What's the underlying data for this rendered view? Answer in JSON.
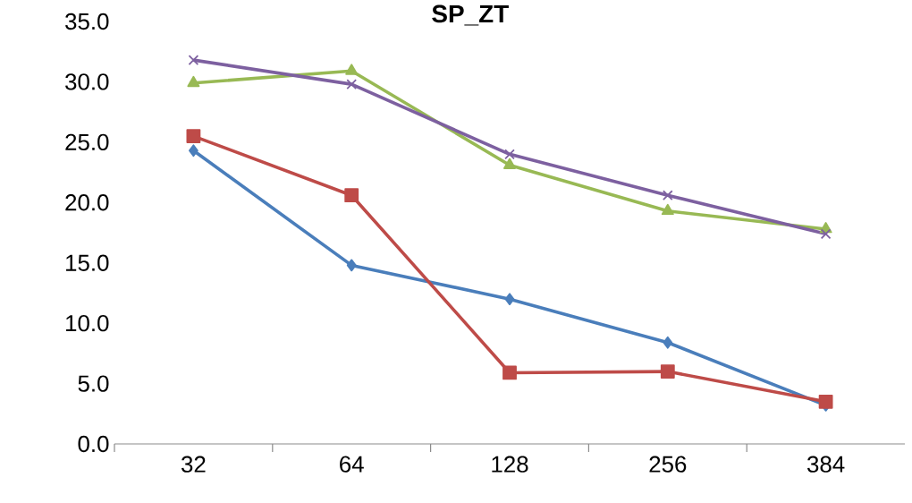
{
  "chart_data": {
    "type": "line",
    "title": "SP_ZT",
    "categories": [
      "32",
      "64",
      "128",
      "256",
      "384"
    ],
    "series": [
      {
        "color": "#4a7ebb",
        "marker": "diamond",
        "values": [
          24.3,
          14.8,
          12.0,
          8.4,
          3.2
        ]
      },
      {
        "color": "#be4b48",
        "marker": "square",
        "values": [
          25.5,
          20.6,
          5.9,
          6.0,
          3.5
        ]
      },
      {
        "color": "#98b954",
        "marker": "triangle",
        "values": [
          29.9,
          30.9,
          23.1,
          19.3,
          17.8
        ]
      },
      {
        "color": "#7d60a0",
        "marker": "cross",
        "values": [
          31.8,
          29.8,
          24.0,
          20.6,
          17.4
        ]
      }
    ],
    "ylim": [
      0,
      35
    ],
    "yticks": [
      {
        "value": 0,
        "label": "0.0"
      },
      {
        "value": 5,
        "label": "5.0"
      },
      {
        "value": 10,
        "label": "10.0"
      },
      {
        "value": 15,
        "label": "15.0"
      },
      {
        "value": 20,
        "label": "20.0"
      },
      {
        "value": 25,
        "label": "25.0"
      },
      {
        "value": 30,
        "label": "30.0"
      },
      {
        "value": 35,
        "label": "35.0"
      }
    ],
    "grid": false,
    "legend": false
  }
}
